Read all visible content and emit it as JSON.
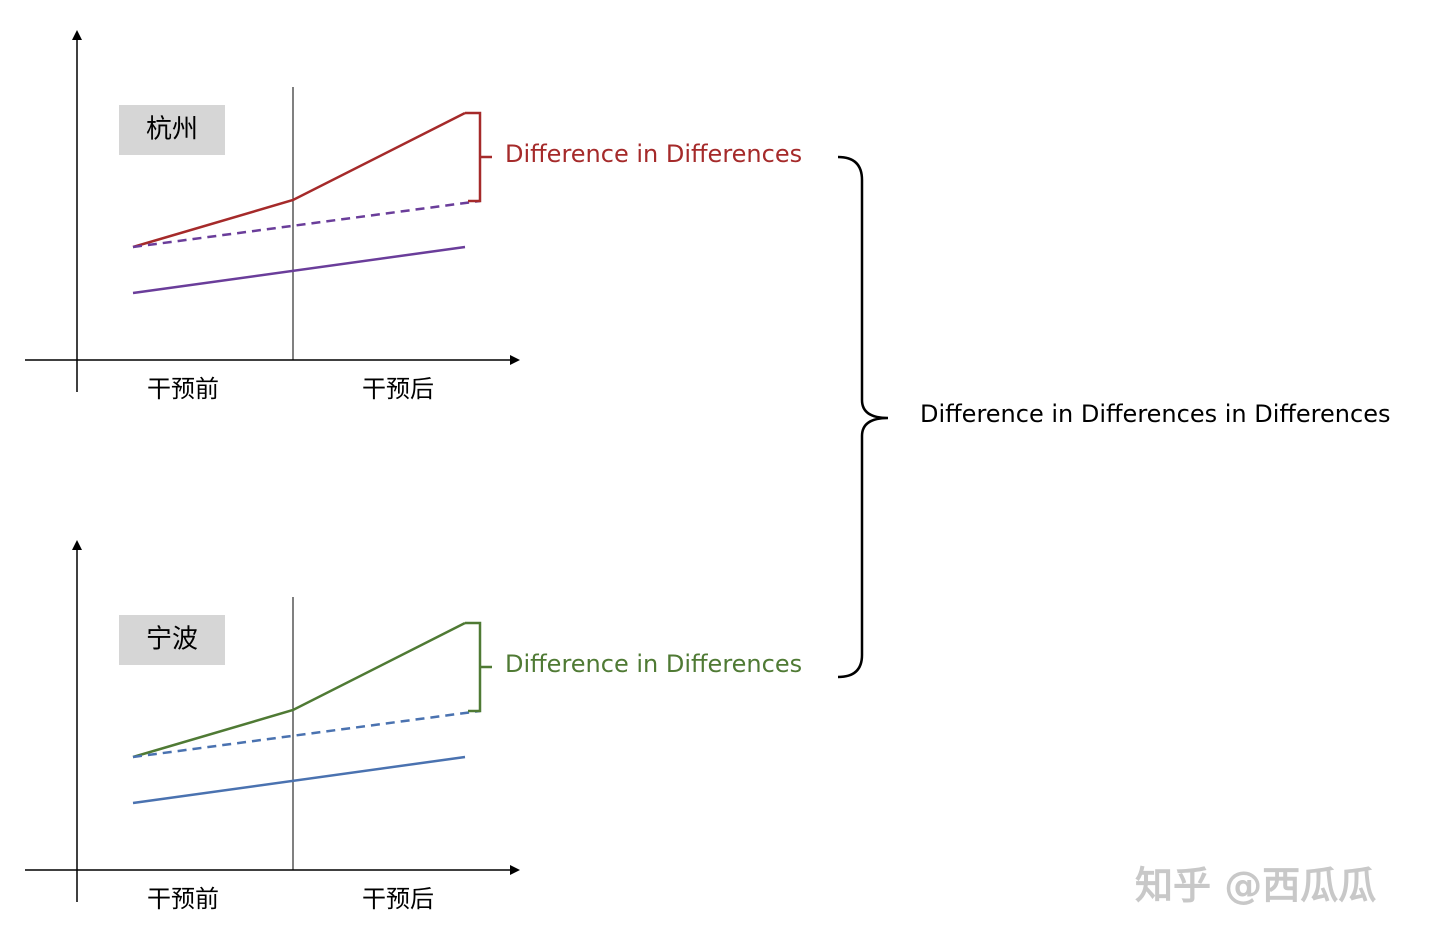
{
  "panels": [
    {
      "label": "杭州",
      "x_labels": [
        "干预前",
        "干预后"
      ],
      "annotation": "Difference in Differences",
      "color": "#a52a2a",
      "baseline_color": "#6a3d9a"
    },
    {
      "label": "宁波",
      "x_labels": [
        "干预前",
        "干预后"
      ],
      "annotation": "Difference in Differences",
      "color": "#4f7a34",
      "baseline_color": "#4a72b0"
    }
  ],
  "summary": "Difference in Differences in Differences",
  "watermark": "知乎 @西瓜瓜"
}
